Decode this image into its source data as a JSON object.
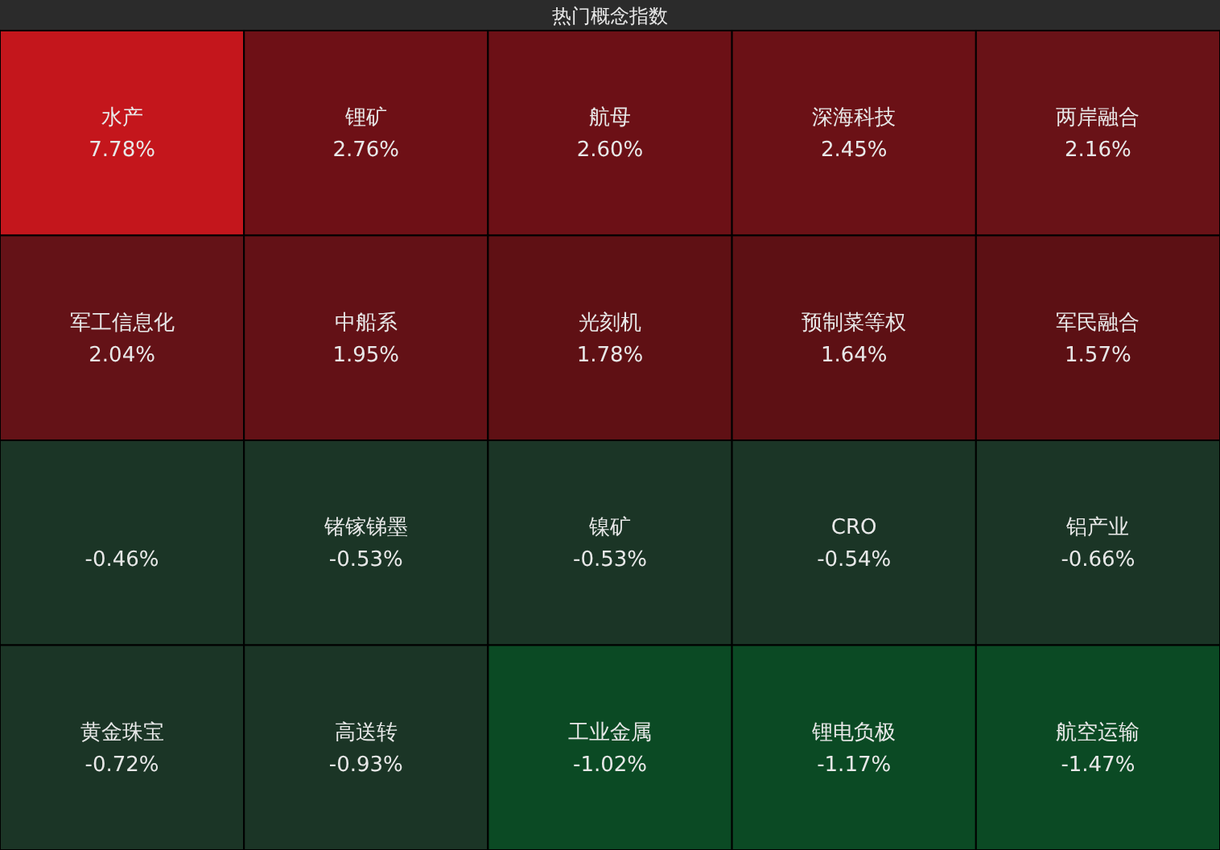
{
  "chart_data": {
    "type": "other",
    "title": "热门概念指数",
    "categories": [
      "水产",
      "锂矿",
      "航母",
      "深海科技",
      "两岸融合",
      "军工信息化",
      "中船系",
      "光刻机",
      "预制菜等权",
      "军民融合",
      null,
      "锗镓锑墨",
      "镍矿",
      "CRO",
      "铝产业",
      "黄金珠宝",
      "高送转",
      "工业金属",
      "锂电负极",
      "航空运输"
    ],
    "values": [
      7.78,
      2.76,
      2.6,
      2.45,
      2.16,
      2.04,
      1.95,
      1.78,
      1.64,
      1.57,
      -0.46,
      -0.53,
      -0.53,
      -0.54,
      -0.66,
      -0.72,
      -0.93,
      -1.02,
      -1.17,
      -1.47
    ],
    "value_labels": [
      "7.78%",
      "2.76%",
      "2.60%",
      "2.45%",
      "2.16%",
      "2.04%",
      "1.95%",
      "1.78%",
      "1.64%",
      "1.57%",
      "-0.46%",
      "-0.53%",
      "-0.53%",
      "-0.54%",
      "-0.66%",
      "-0.72%",
      "-0.93%",
      "-1.02%",
      "-1.17%",
      "-1.47%"
    ],
    "colors": [
      "#c4161c",
      "#6e1016",
      "#6c1016",
      "#6b1116",
      "#691217",
      "#641217",
      "#631116",
      "#5f1014",
      "#5d1014",
      "#5c1014",
      "#1b3526",
      "#1b3526",
      "#1b3526",
      "#1b3526",
      "#1b3526",
      "#1b3526",
      "#1b3526",
      "#0b4a24",
      "#0b4a24",
      "#0b4a24"
    ]
  }
}
